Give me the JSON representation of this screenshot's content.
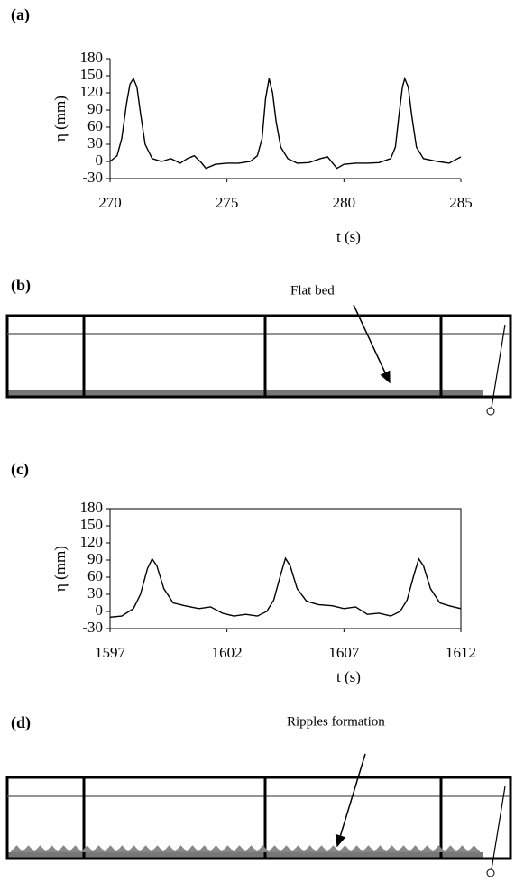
{
  "panel_labels": [
    "(a)",
    "(b)",
    "(c)",
    "(d)"
  ],
  "diagrams": [
    {
      "annotation": "Flat bed"
    },
    {
      "annotation": "Ripples formation"
    }
  ],
  "chart_data": [
    {
      "type": "line",
      "xlabel": "t (s)",
      "ylabel": "η (mm)",
      "color": "#000000",
      "box": false,
      "xlim": [
        270,
        285
      ],
      "xticks": [
        270,
        275,
        280,
        285
      ],
      "ylim": [
        -30,
        180
      ],
      "yticks": [
        -30,
        0,
        30,
        60,
        90,
        120,
        150,
        180
      ],
      "x": [
        270,
        270.3,
        270.5,
        270.7,
        270.85,
        271.0,
        271.15,
        271.3,
        271.5,
        271.8,
        272.2,
        272.6,
        273.0,
        273.3,
        273.6,
        273.9,
        274.1,
        274.5,
        275.0,
        275.5,
        276.0,
        276.3,
        276.5,
        276.65,
        276.8,
        276.95,
        277.1,
        277.3,
        277.6,
        278.0,
        278.5,
        279.0,
        279.3,
        279.7,
        280.0,
        280.5,
        281.0,
        281.5,
        282.0,
        282.2,
        282.35,
        282.5,
        282.6,
        282.75,
        282.9,
        283.1,
        283.4,
        284.0,
        284.5,
        285.0
      ],
      "values": [
        0,
        10,
        40,
        100,
        135,
        145,
        130,
        85,
        30,
        5,
        0,
        5,
        -3,
        5,
        10,
        -2,
        -12,
        -5,
        -3,
        -3,
        0,
        10,
        40,
        110,
        145,
        120,
        70,
        25,
        5,
        -3,
        -2,
        5,
        8,
        -12,
        -5,
        -3,
        -3,
        -2,
        5,
        25,
        80,
        130,
        145,
        130,
        80,
        25,
        5,
        0,
        -3,
        8
      ]
    },
    {
      "type": "line",
      "xlabel": "t (s)",
      "ylabel": "η (mm)",
      "color": "#000000",
      "box": true,
      "xlim": [
        1597,
        1612
      ],
      "xticks": [
        1597,
        1602,
        1607,
        1612
      ],
      "ylim": [
        -30,
        180
      ],
      "yticks": [
        -30,
        0,
        30,
        60,
        90,
        120,
        150,
        180
      ],
      "x": [
        1597,
        1597.5,
        1598.0,
        1598.3,
        1598.6,
        1598.8,
        1599.0,
        1599.3,
        1599.7,
        1600.2,
        1600.8,
        1601.3,
        1601.8,
        1602.3,
        1602.8,
        1603.3,
        1603.7,
        1604.0,
        1604.3,
        1604.5,
        1604.7,
        1605.0,
        1605.4,
        1605.9,
        1606.5,
        1607.0,
        1607.5,
        1608.0,
        1608.5,
        1609.0,
        1609.4,
        1609.7,
        1610.0,
        1610.2,
        1610.4,
        1610.7,
        1611.1,
        1611.5,
        1612
      ],
      "values": [
        -10,
        -8,
        5,
        30,
        75,
        92,
        80,
        40,
        15,
        10,
        5,
        8,
        -3,
        -8,
        -5,
        -8,
        0,
        20,
        65,
        93,
        80,
        40,
        18,
        12,
        10,
        5,
        8,
        -5,
        -3,
        -8,
        0,
        20,
        65,
        92,
        80,
        40,
        15,
        10,
        5
      ]
    }
  ]
}
